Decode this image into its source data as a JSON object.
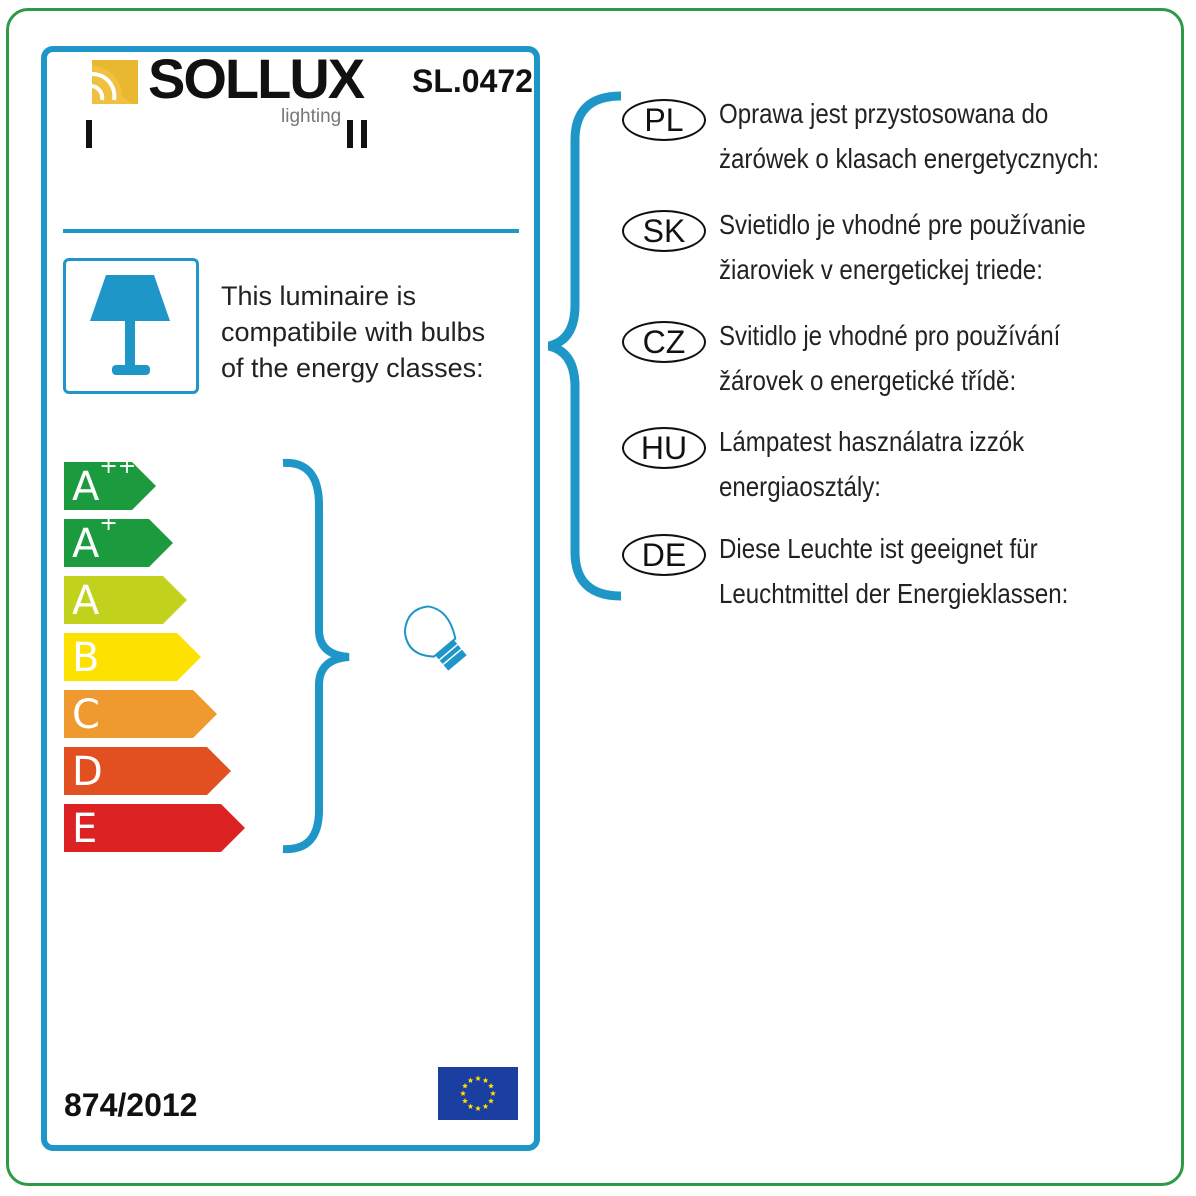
{
  "brand": {
    "name": "SOLLUX",
    "sub": "lighting",
    "model": "SL.0472",
    "marks": [
      "I",
      "II"
    ]
  },
  "compat_text": [
    "This luminaire is",
    "compatibile with bulbs",
    "of the energy classes:"
  ],
  "classes": [
    {
      "label": "A",
      "sup": "++",
      "color": "#1c9a3e"
    },
    {
      "label": "A",
      "sup": "+",
      "color": "#1c9a3e"
    },
    {
      "label": "A",
      "sup": "",
      "color": "#c2d11c"
    },
    {
      "label": "B",
      "sup": "",
      "color": "#fde100"
    },
    {
      "label": "C",
      "sup": "",
      "color": "#ee9a2e"
    },
    {
      "label": "D",
      "sup": "",
      "color": "#e25021"
    },
    {
      "label": "E",
      "sup": "",
      "color": "#dc2222"
    }
  ],
  "regulation": "874/2012",
  "accent": "#1e96c8",
  "languages": [
    {
      "code": "PL",
      "lines": [
        "Oprawa jest przystosowana do",
        "żarówek o klasach energetycznych:"
      ]
    },
    {
      "code": "SK",
      "lines": [
        "Svietidlo je vhodné pre používanie",
        "žiaroviek v energetickej triede:"
      ]
    },
    {
      "code": "CZ",
      "lines": [
        "Svitidlo je vhodné pro používání",
        "žárovek o energetické třídě:"
      ]
    },
    {
      "code": "HU",
      "lines": [
        "Lámpatest használatra izzók",
        "energiaosztály:"
      ]
    },
    {
      "code": "DE",
      "lines": [
        "Diese Leuchte ist geeignet für",
        "Leuchtmittel der Energieklassen:"
      ]
    }
  ]
}
